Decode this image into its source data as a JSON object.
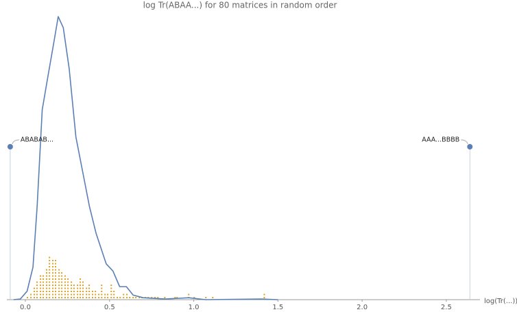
{
  "chart_data": {
    "type": "density",
    "title": "log Tr(ABAA...) for 80 matrices in random order",
    "x_label": "log(Tr(...))",
    "xlim": [
      -0.11,
      2.7
    ],
    "ylim": [
      0,
      4.5
    ],
    "xticks": [
      {
        "value": 0,
        "label": "0.0"
      },
      0.5,
      {
        "value": 1,
        "label": "1.0"
      },
      1.5,
      {
        "value": 2,
        "label": "2.0"
      },
      2.5
    ],
    "curve": {
      "color": "#5b7fb5",
      "x": [
        -0.07,
        -0.03,
        0.01,
        0.045,
        0.07,
        0.1,
        0.135,
        0.17,
        0.195,
        0.225,
        0.26,
        0.3,
        0.34,
        0.38,
        0.42,
        0.48,
        0.52,
        0.56,
        0.6,
        0.64,
        0.7,
        0.83,
        0.97,
        1.07,
        1.4,
        1.5
      ],
      "values": [
        0,
        0.01,
        0.13,
        0.5,
        1.44,
        2.92,
        3.45,
        3.97,
        4.35,
        4.18,
        3.55,
        2.5,
        1.97,
        1.44,
        1.02,
        0.55,
        0.44,
        0.2,
        0.2,
        0.07,
        0.03,
        0.01,
        0.03,
        0,
        0.01,
        0
      ]
    },
    "dots": {
      "color": "#e0a020",
      "x": [
        0.012,
        0.033,
        0.053,
        0.069,
        0.09,
        0.106,
        0.126,
        0.143,
        0.163,
        0.179,
        0.2,
        0.216,
        0.236,
        0.253,
        0.273,
        0.289,
        0.31,
        0.326,
        0.342,
        0.363,
        0.379,
        0.399,
        0.416,
        0.436,
        0.453,
        0.473,
        0.489,
        0.51,
        0.526,
        0.546,
        0.563,
        0.583,
        0.603,
        0.62,
        0.64,
        0.656,
        0.677,
        0.693,
        0.713,
        0.73,
        0.75,
        0.77,
        0.787,
        0.828,
        0.889,
        0.901,
        0.97,
        1.003,
        1.072,
        1.113,
        1.419
      ],
      "values": [
        1,
        2,
        4,
        6,
        8,
        8,
        10,
        14,
        13,
        13,
        10,
        9,
        8,
        7,
        6,
        5,
        5,
        7,
        6,
        4,
        5,
        3,
        3,
        2,
        5,
        2,
        2,
        5,
        3,
        1,
        1,
        2,
        2,
        1,
        1,
        1,
        1,
        1,
        1,
        1,
        1,
        1,
        1,
        1,
        1,
        1,
        2,
        1,
        1,
        1,
        2
      ]
    },
    "annotations": [
      {
        "label": "ABABAB...",
        "x": -0.09,
        "y": 2.35,
        "color": "#5b7fb5"
      },
      {
        "label": "AAA...BBBB",
        "x": 2.64,
        "y": 2.35,
        "color": "#5b7fb5"
      }
    ]
  }
}
